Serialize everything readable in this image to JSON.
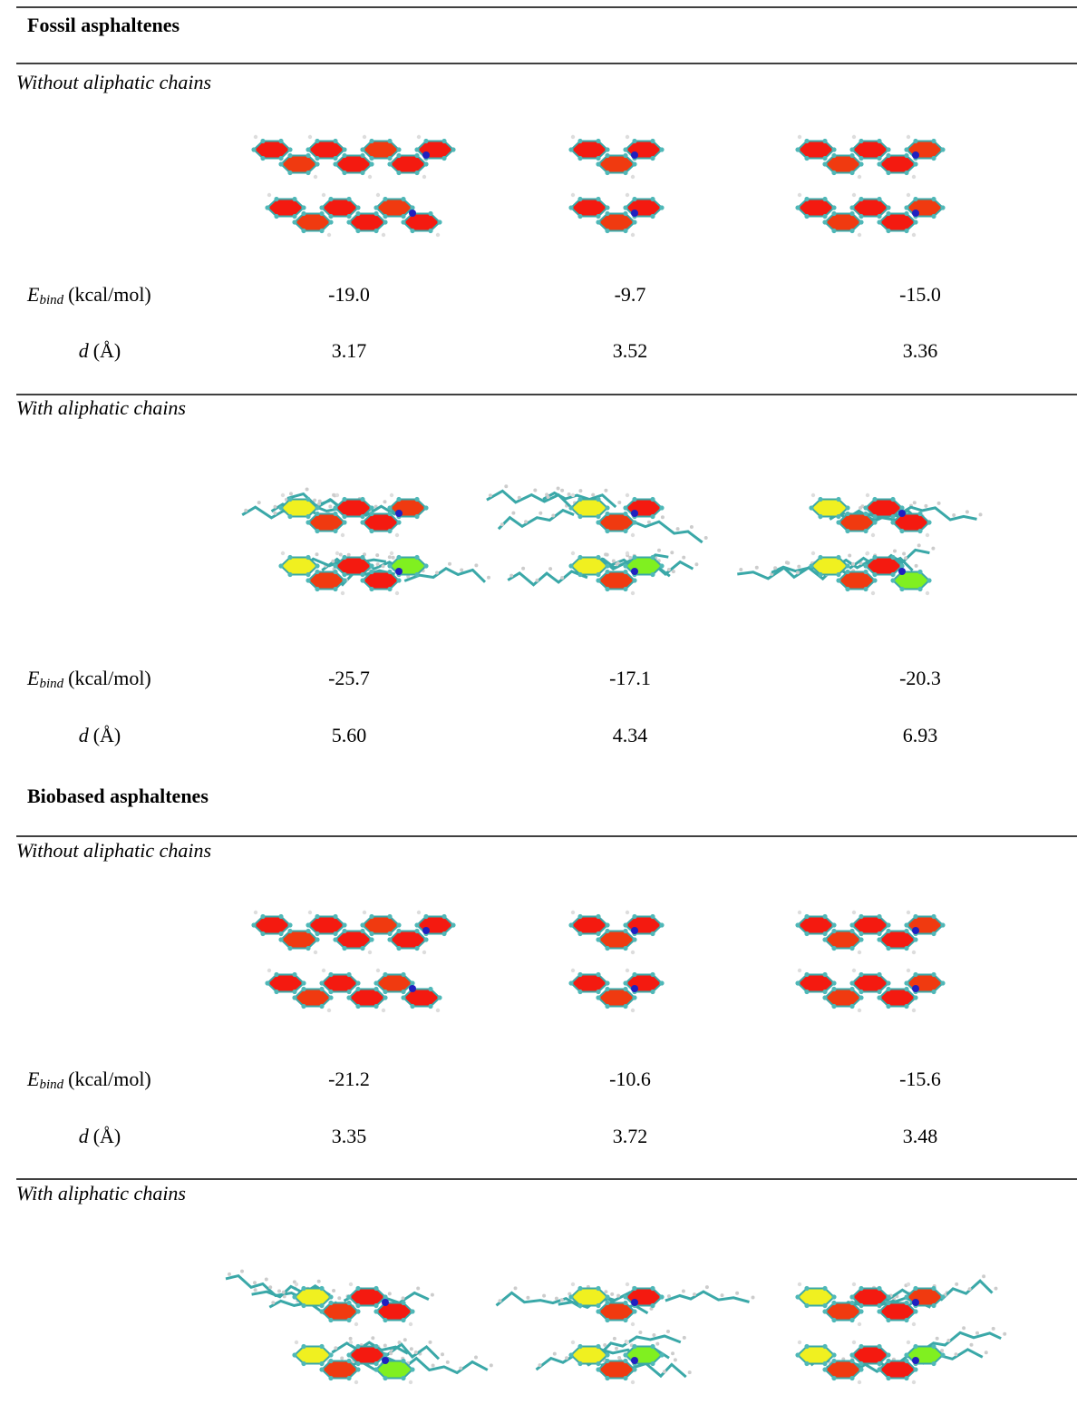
{
  "sections": [
    {
      "title": "Fossil asphaltenes",
      "groups": [
        {
          "title": "Without aliphatic chains",
          "rows": [
            {
              "label": {
                "symbol": "E",
                "subscript": "bind",
                "unit": "(kcal/mol)"
              },
              "values": [
                "-19.0",
                "-9.7",
                "-15.0"
              ]
            },
            {
              "label": {
                "symbol": "d",
                "unit": "(Å)"
              },
              "values": [
                "3.17",
                "3.52",
                "3.36"
              ]
            }
          ]
        },
        {
          "title": "With aliphatic chains",
          "rows": [
            {
              "label": {
                "symbol": "E",
                "subscript": "bind",
                "unit": "(kcal/mol)"
              },
              "values": [
                "-25.7",
                "-17.1",
                "-20.3"
              ]
            },
            {
              "label": {
                "symbol": "d",
                "unit": "(Å)"
              },
              "values": [
                "5.60",
                "4.34",
                "6.93"
              ]
            }
          ]
        }
      ]
    },
    {
      "title": "Biobased asphaltenes",
      "groups": [
        {
          "title": "Without aliphatic chains",
          "rows": [
            {
              "label": {
                "symbol": "E",
                "subscript": "bind",
                "unit": "(kcal/mol)"
              },
              "values": [
                "-21.2",
                "-10.6",
                "-15.6"
              ]
            },
            {
              "label": {
                "symbol": "d",
                "unit": "(Å)"
              },
              "values": [
                "3.35",
                "3.72",
                "3.48"
              ]
            }
          ]
        },
        {
          "title": "With aliphatic chains",
          "rows": []
        }
      ]
    }
  ]
}
